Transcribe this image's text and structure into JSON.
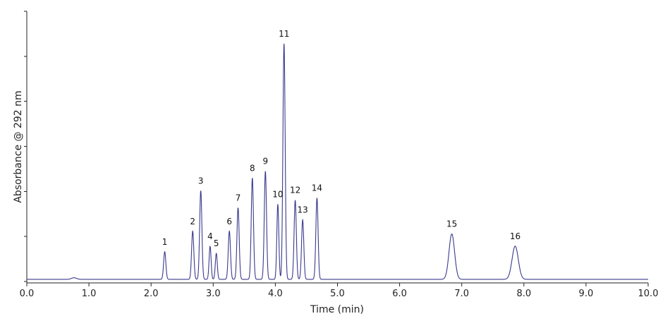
{
  "chart_data": {
    "type": "line",
    "title": "",
    "xlabel": "Time (min)",
    "ylabel": "Absorbance @ 292 nm",
    "xlim": [
      0,
      10
    ],
    "ylim": [
      0,
      100
    ],
    "x_ticks": [
      "0.0",
      "1.0",
      "2.0",
      "3.0",
      "4.0",
      "5.0",
      "6.0",
      "7.0",
      "8.0",
      "9.0",
      "10.0"
    ],
    "y_ticks": [
      0,
      16.7,
      33.3,
      50,
      66.7,
      83.3,
      100
    ],
    "y_tick_labels_shown": false,
    "grid": false,
    "line_color": "#3a3a8c",
    "baseline": 0.8,
    "peaks": [
      {
        "label": "1",
        "time": 2.22,
        "height": 10.2,
        "width": 0.018
      },
      {
        "label": "2",
        "time": 2.67,
        "height": 17.8,
        "width": 0.018
      },
      {
        "label": "3",
        "time": 2.8,
        "height": 32.8,
        "width": 0.018
      },
      {
        "label": "4",
        "time": 2.95,
        "height": 12.2,
        "width": 0.016
      },
      {
        "label": "5",
        "time": 3.05,
        "height": 9.6,
        "width": 0.016
      },
      {
        "label": "6",
        "time": 3.26,
        "height": 17.8,
        "width": 0.018
      },
      {
        "label": "7",
        "time": 3.4,
        "height": 26.5,
        "width": 0.018
      },
      {
        "label": "8",
        "time": 3.63,
        "height": 37.5,
        "width": 0.018
      },
      {
        "label": "9",
        "time": 3.84,
        "height": 40.0,
        "width": 0.018
      },
      {
        "label": "10",
        "time": 4.04,
        "height": 27.8,
        "width": 0.016
      },
      {
        "label": "11",
        "time": 4.14,
        "height": 87.2,
        "width": 0.018
      },
      {
        "label": "12",
        "time": 4.32,
        "height": 29.3,
        "width": 0.018
      },
      {
        "label": "13",
        "time": 4.44,
        "height": 22.0,
        "width": 0.018
      },
      {
        "label": "14",
        "time": 4.67,
        "height": 30.1,
        "width": 0.018
      },
      {
        "label": "15",
        "time": 6.84,
        "height": 16.8,
        "width": 0.045
      },
      {
        "label": "16",
        "time": 7.86,
        "height": 12.3,
        "width": 0.05
      }
    ],
    "minor_features": [
      {
        "time": 0.76,
        "height": 0.6,
        "width": 0.04
      }
    ]
  }
}
